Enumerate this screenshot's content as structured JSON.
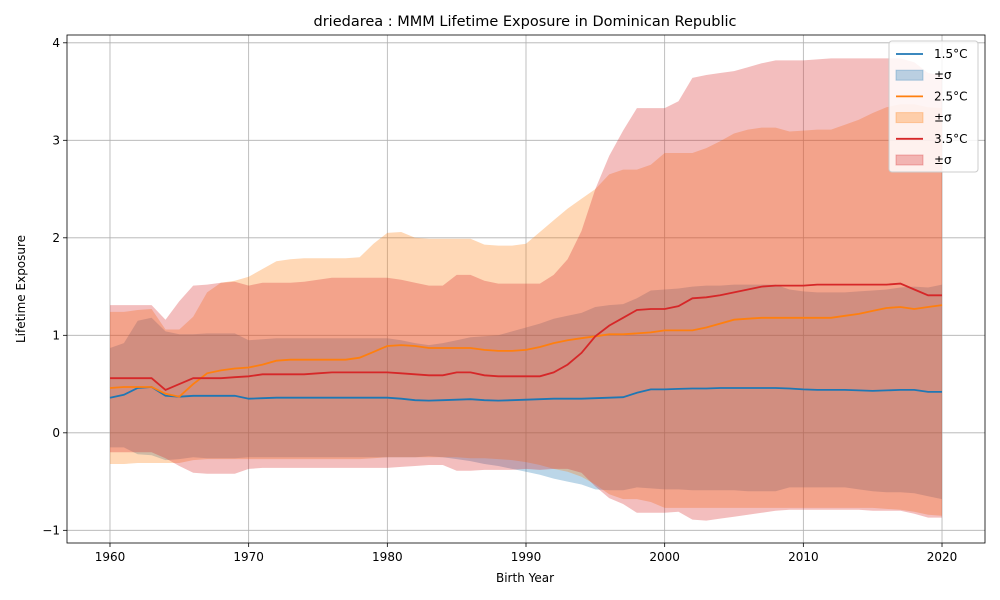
{
  "chart_data": {
    "type": "area",
    "title": "driedarea : MMM Lifetime Exposure in Dominican Republic",
    "xlabel": "Birth Year",
    "ylabel": "Lifetime Exposure",
    "xlim": [
      1956.9,
      2023.1
    ],
    "ylim": [
      -1.13,
      4.08
    ],
    "xticks": [
      1960,
      1970,
      1980,
      1990,
      2000,
      2010,
      2020
    ],
    "yticks": [
      -1,
      0,
      1,
      2,
      3,
      4
    ],
    "ytick_labels": [
      "−1",
      "0",
      "1",
      "2",
      "3",
      "4"
    ],
    "grid": true,
    "legend_position": "top-right",
    "x": [
      1960,
      1961,
      1962,
      1963,
      1964,
      1965,
      1966,
      1967,
      1968,
      1969,
      1970,
      1971,
      1972,
      1973,
      1974,
      1975,
      1976,
      1977,
      1978,
      1979,
      1980,
      1981,
      1982,
      1983,
      1984,
      1985,
      1986,
      1987,
      1988,
      1989,
      1990,
      1991,
      1992,
      1993,
      1994,
      1995,
      1996,
      1997,
      1998,
      1999,
      2000,
      2001,
      2002,
      2003,
      2004,
      2005,
      2006,
      2007,
      2008,
      2009,
      2010,
      2011,
      2012,
      2013,
      2014,
      2015,
      2016,
      2017,
      2018,
      2019,
      2020
    ],
    "series": [
      {
        "name": "1.5°C",
        "band_label": "±σ",
        "color": "#1f77b4",
        "band_color": "#1f77b4",
        "mean": [
          0.36,
          0.39,
          0.46,
          0.47,
          0.38,
          0.37,
          0.38,
          0.38,
          0.38,
          0.38,
          0.35,
          0.355,
          0.36,
          0.36,
          0.36,
          0.36,
          0.36,
          0.36,
          0.36,
          0.36,
          0.36,
          0.35,
          0.335,
          0.33,
          0.335,
          0.34,
          0.345,
          0.335,
          0.33,
          0.335,
          0.34,
          0.345,
          0.35,
          0.35,
          0.35,
          0.355,
          0.36,
          0.365,
          0.41,
          0.445,
          0.445,
          0.45,
          0.455,
          0.455,
          0.46,
          0.46,
          0.46,
          0.46,
          0.46,
          0.455,
          0.445,
          0.44,
          0.44,
          0.44,
          0.435,
          0.43,
          0.435,
          0.44,
          0.44,
          0.42,
          0.42
        ],
        "upper": [
          0.87,
          0.92,
          1.15,
          1.18,
          1.04,
          1.01,
          1.01,
          1.02,
          1.02,
          1.02,
          0.95,
          0.96,
          0.97,
          0.97,
          0.97,
          0.97,
          0.97,
          0.97,
          0.97,
          0.97,
          0.97,
          0.95,
          0.92,
          0.9,
          0.92,
          0.95,
          0.98,
          0.99,
          1.0,
          1.04,
          1.08,
          1.12,
          1.17,
          1.2,
          1.23,
          1.29,
          1.31,
          1.32,
          1.38,
          1.46,
          1.47,
          1.48,
          1.5,
          1.51,
          1.51,
          1.52,
          1.52,
          1.52,
          1.52,
          1.47,
          1.45,
          1.44,
          1.44,
          1.44,
          1.45,
          1.46,
          1.47,
          1.49,
          1.5,
          1.49,
          1.52
        ],
        "lower": [
          -0.15,
          -0.15,
          -0.22,
          -0.23,
          -0.28,
          -0.27,
          -0.25,
          -0.26,
          -0.26,
          -0.26,
          -0.25,
          -0.25,
          -0.25,
          -0.25,
          -0.25,
          -0.25,
          -0.25,
          -0.25,
          -0.25,
          -0.25,
          -0.25,
          -0.25,
          -0.25,
          -0.24,
          -0.25,
          -0.27,
          -0.29,
          -0.32,
          -0.34,
          -0.37,
          -0.4,
          -0.43,
          -0.47,
          -0.5,
          -0.53,
          -0.58,
          -0.59,
          -0.59,
          -0.56,
          -0.57,
          -0.58,
          -0.58,
          -0.59,
          -0.59,
          -0.59,
          -0.59,
          -0.6,
          -0.6,
          -0.6,
          -0.56,
          -0.56,
          -0.56,
          -0.56,
          -0.56,
          -0.58,
          -0.6,
          -0.61,
          -0.61,
          -0.62,
          -0.65,
          -0.68
        ]
      },
      {
        "name": "2.5°C",
        "band_label": "±σ",
        "color": "#ff7f0e",
        "band_color": "#ff7f0e",
        "mean": [
          0.46,
          0.47,
          0.47,
          0.47,
          0.4,
          0.37,
          0.5,
          0.61,
          0.64,
          0.66,
          0.67,
          0.7,
          0.74,
          0.75,
          0.75,
          0.75,
          0.75,
          0.75,
          0.77,
          0.83,
          0.89,
          0.9,
          0.89,
          0.87,
          0.87,
          0.87,
          0.87,
          0.85,
          0.84,
          0.84,
          0.85,
          0.88,
          0.92,
          0.95,
          0.97,
          0.99,
          1.01,
          1.01,
          1.02,
          1.03,
          1.05,
          1.05,
          1.05,
          1.08,
          1.12,
          1.16,
          1.17,
          1.18,
          1.18,
          1.18,
          1.18,
          1.18,
          1.18,
          1.2,
          1.22,
          1.25,
          1.28,
          1.29,
          1.27,
          1.29,
          1.31
        ],
        "upper": [
          1.24,
          1.24,
          1.26,
          1.27,
          1.06,
          1.06,
          1.19,
          1.44,
          1.54,
          1.56,
          1.6,
          1.68,
          1.76,
          1.78,
          1.79,
          1.79,
          1.79,
          1.79,
          1.8,
          1.94,
          2.05,
          2.06,
          2.0,
          1.99,
          1.99,
          1.99,
          1.99,
          1.93,
          1.92,
          1.92,
          1.94,
          2.06,
          2.18,
          2.3,
          2.4,
          2.5,
          2.65,
          2.7,
          2.7,
          2.75,
          2.87,
          2.87,
          2.87,
          2.92,
          2.99,
          3.07,
          3.11,
          3.13,
          3.13,
          3.09,
          3.1,
          3.11,
          3.11,
          3.16,
          3.21,
          3.28,
          3.34,
          3.37,
          3.37,
          3.34,
          3.33
        ],
        "lower": [
          -0.32,
          -0.32,
          -0.31,
          -0.31,
          -0.31,
          -0.31,
          -0.28,
          -0.27,
          -0.27,
          -0.27,
          -0.27,
          -0.27,
          -0.27,
          -0.27,
          -0.27,
          -0.27,
          -0.27,
          -0.27,
          -0.27,
          -0.26,
          -0.25,
          -0.25,
          -0.25,
          -0.25,
          -0.25,
          -0.25,
          -0.26,
          -0.26,
          -0.27,
          -0.28,
          -0.3,
          -0.33,
          -0.37,
          -0.4,
          -0.45,
          -0.53,
          -0.63,
          -0.68,
          -0.68,
          -0.71,
          -0.77,
          -0.77,
          -0.77,
          -0.77,
          -0.77,
          -0.77,
          -0.77,
          -0.77,
          -0.77,
          -0.77,
          -0.77,
          -0.77,
          -0.77,
          -0.77,
          -0.77,
          -0.77,
          -0.78,
          -0.79,
          -0.81,
          -0.84,
          -0.85
        ]
      },
      {
        "name": "3.5°C",
        "band_label": "±σ",
        "color": "#d62728",
        "band_color": "#d62728",
        "mean": [
          0.56,
          0.56,
          0.56,
          0.56,
          0.44,
          0.5,
          0.56,
          0.56,
          0.56,
          0.57,
          0.58,
          0.6,
          0.6,
          0.6,
          0.6,
          0.61,
          0.62,
          0.62,
          0.62,
          0.62,
          0.62,
          0.61,
          0.6,
          0.59,
          0.59,
          0.62,
          0.62,
          0.59,
          0.58,
          0.58,
          0.58,
          0.58,
          0.62,
          0.7,
          0.82,
          0.99,
          1.1,
          1.18,
          1.26,
          1.27,
          1.27,
          1.3,
          1.38,
          1.39,
          1.41,
          1.44,
          1.47,
          1.5,
          1.51,
          1.51,
          1.51,
          1.52,
          1.52,
          1.52,
          1.52,
          1.52,
          1.52,
          1.53,
          1.47,
          1.41,
          1.41
        ],
        "upper": [
          1.31,
          1.31,
          1.31,
          1.31,
          1.16,
          1.35,
          1.51,
          1.52,
          1.54,
          1.55,
          1.51,
          1.54,
          1.54,
          1.54,
          1.55,
          1.57,
          1.59,
          1.59,
          1.59,
          1.59,
          1.59,
          1.57,
          1.54,
          1.51,
          1.51,
          1.62,
          1.62,
          1.56,
          1.53,
          1.53,
          1.53,
          1.53,
          1.62,
          1.78,
          2.07,
          2.5,
          2.84,
          3.1,
          3.33,
          3.33,
          3.33,
          3.4,
          3.64,
          3.67,
          3.69,
          3.71,
          3.75,
          3.79,
          3.82,
          3.82,
          3.82,
          3.83,
          3.84,
          3.84,
          3.84,
          3.84,
          3.84,
          3.84,
          3.8,
          3.69,
          3.67
        ],
        "lower": [
          -0.2,
          -0.2,
          -0.2,
          -0.2,
          -0.26,
          -0.34,
          -0.41,
          -0.42,
          -0.42,
          -0.42,
          -0.37,
          -0.36,
          -0.36,
          -0.36,
          -0.36,
          -0.36,
          -0.36,
          -0.36,
          -0.36,
          -0.36,
          -0.36,
          -0.35,
          -0.34,
          -0.33,
          -0.33,
          -0.39,
          -0.39,
          -0.38,
          -0.38,
          -0.38,
          -0.37,
          -0.38,
          -0.37,
          -0.37,
          -0.41,
          -0.55,
          -0.67,
          -0.73,
          -0.82,
          -0.82,
          -0.82,
          -0.81,
          -0.89,
          -0.9,
          -0.88,
          -0.86,
          -0.84,
          -0.82,
          -0.8,
          -0.79,
          -0.79,
          -0.79,
          -0.79,
          -0.79,
          -0.79,
          -0.8,
          -0.8,
          -0.8,
          -0.83,
          -0.87,
          -0.87
        ]
      }
    ]
  }
}
